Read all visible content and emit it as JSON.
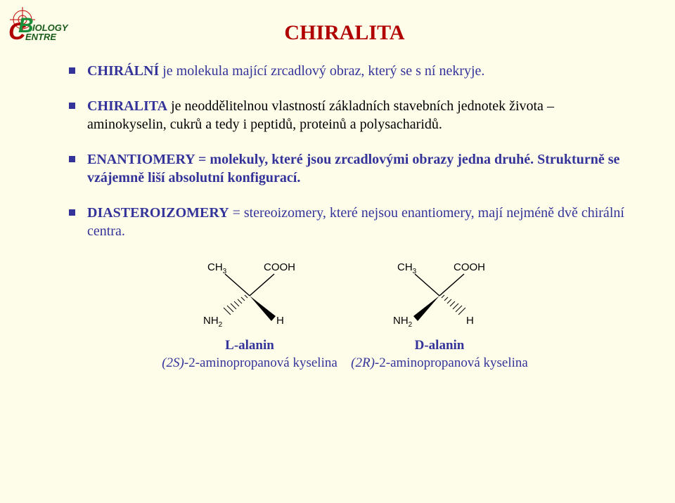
{
  "colors": {
    "background": "#fefdea",
    "title": "#b00000",
    "bullet_square": "#333399",
    "text_blue": "#333399",
    "text_black": "#000000"
  },
  "title": "CHIRALITA",
  "bullets": {
    "b1": {
      "term": "CHIRÁLNÍ",
      "rest": " je molekula mající zrcadlový obraz, který se s ní nekryje."
    },
    "b2": {
      "term": "CHIRALITA",
      "rest": "  je neoddělitelnou vlastností základních stavebních  jednotek života – aminokyselin, cukrů a tedy i peptidů, proteinů a polysacharidů."
    },
    "b3": {
      "term": "ENANTIOMERY",
      "rest": " = molekuly, které jsou  zrcadlovými obrazy jedna druhé. Strukturně se vzájemně liší absolutní konfigurací."
    },
    "b4": {
      "term": "DIASTEROIZOMERY",
      "rest": " = stereoizomery, které nejsou enantiomery, mají nejméně dvě chirální centra."
    }
  },
  "molecules": {
    "left": {
      "top_left": "CH",
      "top_left_sub": "3",
      "top_right": "COOH",
      "bottom_left": "NH",
      "bottom_left_sub": "2",
      "bottom_right": "H",
      "name": "L-alanin",
      "iupac_prefix": "(2S)",
      "iupac_rest": "-2-aminopropanová kyselina"
    },
    "right": {
      "top_left": "CH",
      "top_left_sub": "3",
      "top_right": "COOH",
      "bottom_left": "NH",
      "bottom_left_sub": "2",
      "bottom_right": "H",
      "name": "D-alanin",
      "iupac_prefix": "(2R)",
      "iupac_rest": "-2-aminopropanová kyselina"
    }
  },
  "logo": {
    "text_top": "IOLOGY",
    "text_bottom": "ENTRE",
    "b_color": "#1a8f3a",
    "c_color": "#b00000",
    "text_color": "#1a5a1a",
    "crosshair_color": "#c00000"
  }
}
